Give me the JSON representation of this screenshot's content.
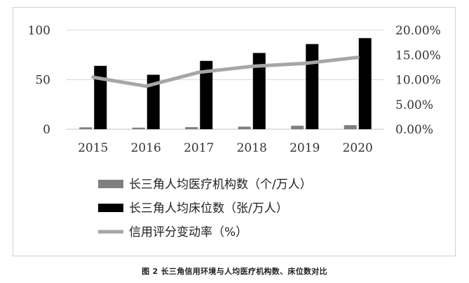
{
  "caption": "图 2 长三角信用环境与人均医疗机构数、床位数对比",
  "chart_data": {
    "type": "bar",
    "categories": [
      "2015",
      "2016",
      "2017",
      "2018",
      "2019",
      "2020"
    ],
    "y_left_range": [
      0,
      100
    ],
    "y_left_ticks": [
      "100",
      "50",
      "0"
    ],
    "y_right_range": [
      0,
      20
    ],
    "y_right_ticks": [
      "20.00%",
      "15.00%",
      "10.00%",
      "5.00%",
      "0.00%"
    ],
    "grid": true,
    "legend_position": "bottom",
    "series": [
      {
        "name": "长三角人均医疗机构数（个/万人）",
        "kind": "bar",
        "axis": "left",
        "color": "#7f7f7f",
        "values": [
          1.9,
          1.6,
          2.1,
          2.6,
          3.5,
          4.1
        ]
      },
      {
        "name": "长三角人均床位数（张/万人）",
        "kind": "bar",
        "axis": "left",
        "color": "#000000",
        "values": [
          64,
          55,
          69,
          77,
          86,
          92
        ]
      },
      {
        "name": "信用评分变动率（%）",
        "kind": "line",
        "axis": "right",
        "color": "#a6a6a6",
        "values": [
          10.5,
          8.7,
          11.5,
          12.7,
          13.3,
          14.5
        ]
      }
    ]
  }
}
